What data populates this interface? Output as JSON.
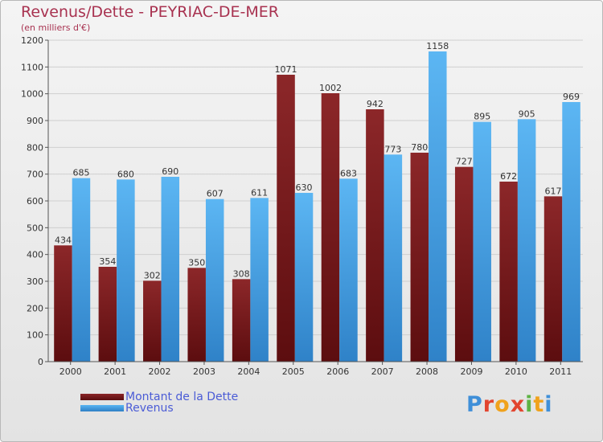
{
  "chart_data": {
    "type": "bar",
    "title": "Revenus/Dette - PEYRIAC-DE-MER",
    "subtitle": "(en milliers d'€)",
    "categories": [
      "2000",
      "2001",
      "2002",
      "2003",
      "2004",
      "2005",
      "2006",
      "2007",
      "2008",
      "2009",
      "2010",
      "2011"
    ],
    "series": [
      {
        "name": "Montant de la Dette",
        "color": "#7b1f20",
        "values": [
          434,
          354,
          302,
          350,
          308,
          1071,
          1002,
          942,
          780,
          727,
          672,
          617
        ]
      },
      {
        "name": "Revenus",
        "color": "#4ba3e8",
        "values": [
          685,
          680,
          690,
          607,
          611,
          630,
          683,
          773,
          1158,
          895,
          905,
          969
        ]
      }
    ],
    "ylim": [
      0,
      1200
    ],
    "yticks": [
      0,
      100,
      200,
      300,
      400,
      500,
      600,
      700,
      800,
      900,
      1000,
      1100,
      1200
    ],
    "grid": true,
    "xlabel": "",
    "ylabel": ""
  },
  "legend": {
    "debt_label": "Montant de la Dette",
    "revenue_label": "Revenus"
  },
  "logo": {
    "letters": [
      "P",
      "r",
      "o",
      "x",
      "i",
      "t",
      "i"
    ],
    "colors": [
      "#3f8fd8",
      "#e2452f",
      "#f0a21c",
      "#e2452f",
      "#5db344",
      "#f0a21c",
      "#3f8fd8"
    ]
  }
}
